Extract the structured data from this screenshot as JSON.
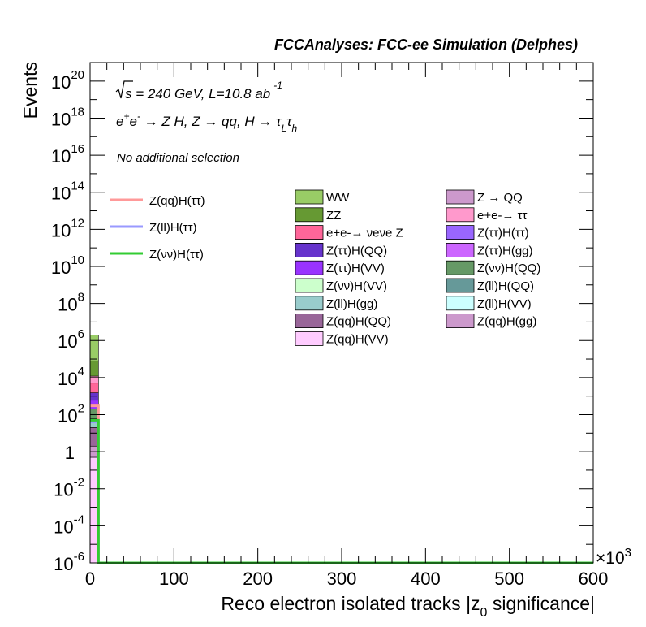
{
  "chart_data": {
    "type": "bar",
    "title": "FCCAnalyses: FCC-ee Simulation (Delphes)",
    "xlabel": "Reco electron isolated tracks |z",
    "xlabel_sub": "0",
    "xlabel_tail": " significance|",
    "ylabel": "Events",
    "x_multiplier": "×10",
    "x_multiplier_exp": "3",
    "xlim": [
      0,
      600
    ],
    "ylim": [
      1e-06,
      1e+21
    ],
    "yscale": "log",
    "x_ticks": [
      "0",
      "100",
      "200",
      "300",
      "400",
      "500",
      "600"
    ],
    "y_ticks": [
      {
        "base": "10",
        "exp": "20",
        "value": 1e+20
      },
      {
        "base": "10",
        "exp": "18",
        "value": 1e+18
      },
      {
        "base": "10",
        "exp": "16",
        "value": 1e+16
      },
      {
        "base": "10",
        "exp": "14",
        "value": 100000000000000.0
      },
      {
        "base": "10",
        "exp": "12",
        "value": 1000000000000.0
      },
      {
        "base": "10",
        "exp": "10",
        "value": 10000000000.0
      },
      {
        "base": "10",
        "exp": "8",
        "value": 100000000.0
      },
      {
        "base": "10",
        "exp": "6",
        "value": 1000000.0
      },
      {
        "base": "10",
        "exp": "4",
        "value": 10000.0
      },
      {
        "base": "10",
        "exp": "2",
        "value": 100.0
      },
      {
        "base": "1",
        "exp": "",
        "value": 1
      },
      {
        "base": "10",
        "exp": "-2",
        "value": 0.01
      },
      {
        "base": "10",
        "exp": "-4",
        "value": 0.0001
      },
      {
        "base": "10",
        "exp": "-6",
        "value": 1e-06
      }
    ],
    "annotations": {
      "energy": "s = 240 GeV, L=10.8 ab",
      "energy_exp": "-1",
      "process": "e",
      "process_sup1": "+",
      "process_mid": "e",
      "process_sup2": "-",
      "process_rest": " → Z H, Z → qq, H → τ",
      "process_sub1": "L",
      "process_tau2": "τ",
      "process_sub2": "h",
      "selection": "No additional selection"
    },
    "signal_legend": [
      {
        "name": "Z(qq)H(ττ)",
        "color": "#ff9999"
      },
      {
        "name": "Z(ll)H(ττ)",
        "color": "#9999ff"
      },
      {
        "name": "Z(νν)H(ττ)",
        "color": "#33cc33"
      }
    ],
    "background_legend": [
      {
        "name": "WW",
        "color": "#99cc66"
      },
      {
        "name": "Z → QQ",
        "color": "#cc99cc"
      },
      {
        "name": "ZZ",
        "color": "#669933"
      },
      {
        "name": "e+e-→ ττ",
        "color": "#ff99cc"
      },
      {
        "name": "e+e-→ νeνe Z",
        "color": "#ff6699"
      },
      {
        "name": "Z(ττ)H(ττ)",
        "color": "#9966ff"
      },
      {
        "name": "Z(ττ)H(QQ)",
        "color": "#6633cc"
      },
      {
        "name": "Z(ττ)H(gg)",
        "color": "#cc66ff"
      },
      {
        "name": "Z(ττ)H(VV)",
        "color": "#9933ff"
      },
      {
        "name": "Z(νν)H(QQ)",
        "color": "#669966"
      },
      {
        "name": "Z(νν)H(VV)",
        "color": "#ccffcc"
      },
      {
        "name": "Z(ll)H(QQ)",
        "color": "#669999"
      },
      {
        "name": "Z(ll)H(gg)",
        "color": "#99cccc"
      },
      {
        "name": "Z(ll)H(VV)",
        "color": "#ccffff"
      },
      {
        "name": "Z(qq)H(QQ)",
        "color": "#996699"
      },
      {
        "name": "Z(qq)H(gg)",
        "color": "#cc99cc"
      },
      {
        "name": "Z(qq)H(VV)",
        "color": "#ffccff"
      }
    ],
    "background_stack": {
      "bin": [
        0,
        10
      ],
      "segments": [
        {
          "name": "Z(qq)H(VV)",
          "top": 0.5
        },
        {
          "name": "Z(qq)H(gg)",
          "top": 2
        },
        {
          "name": "Z(qq)H(QQ)",
          "top": 20
        },
        {
          "name": "Z(ll)H(gg)",
          "top": 60
        },
        {
          "name": "Z(νν)H(QQ)",
          "top": 200
        },
        {
          "name": "Z(ττ)H(VV)",
          "top": 600
        },
        {
          "name": "Z(ττ)H(QQ)",
          "top": 1500
        },
        {
          "name": "e+e-→ νeνe Z",
          "top": 5000
        },
        {
          "name": "e+e-→ ττ",
          "top": 12000
        },
        {
          "name": "ZZ",
          "top": 80000
        },
        {
          "name": "WW",
          "top": 2000000
        }
      ]
    },
    "signal_series": [
      {
        "name": "Z(qq)H(ττ)",
        "bin": [
          0,
          10
        ],
        "value": 300
      },
      {
        "name": "Z(ll)H(ττ)",
        "bin": [
          0,
          10
        ],
        "value": 40
      },
      {
        "name": "Z(νν)H(ττ)",
        "bin": [
          0,
          10
        ],
        "value": 50
      }
    ],
    "colors": {
      "frame": "#000000",
      "background": "#ffffff"
    }
  }
}
